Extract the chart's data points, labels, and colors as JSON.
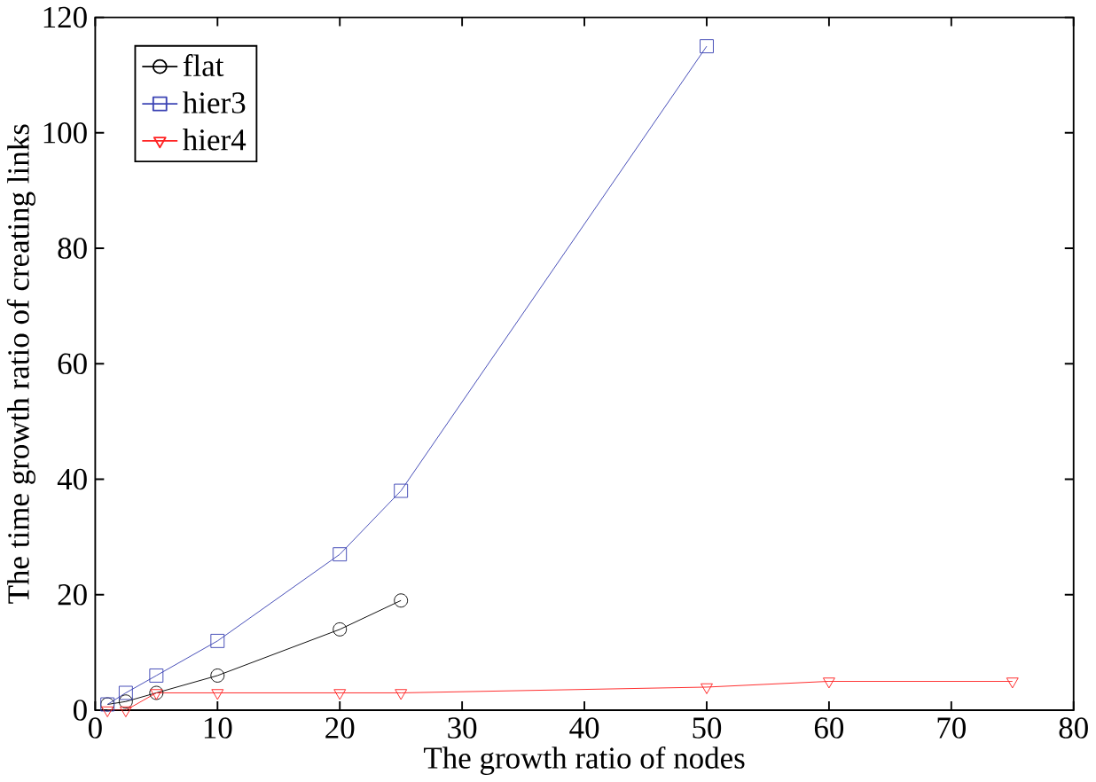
{
  "chart_data": {
    "type": "line",
    "xlabel": "The growth ratio of nodes",
    "ylabel": "The time growth ratio of creating links",
    "xlim": [
      0,
      80
    ],
    "ylim": [
      0,
      120
    ],
    "xticks": [
      0,
      10,
      20,
      30,
      40,
      50,
      60,
      70,
      80
    ],
    "yticks": [
      0,
      20,
      40,
      60,
      80,
      100,
      120
    ],
    "legend": "top left",
    "grid": false,
    "series": [
      {
        "name": "flat",
        "color": "#000000",
        "marker": "circle",
        "x": [
          1,
          2.5,
          5,
          10,
          20,
          25
        ],
        "values": [
          1,
          1.5,
          3,
          6,
          14,
          19
        ]
      },
      {
        "name": "hier3",
        "color": "#3c44b4",
        "marker": "square",
        "x": [
          1,
          2.5,
          5,
          10,
          20,
          25,
          50
        ],
        "values": [
          1,
          3,
          6,
          12,
          27,
          38,
          115
        ]
      },
      {
        "name": "hier4",
        "color": "#ff2020",
        "marker": "triangle",
        "x": [
          1,
          2.5,
          5,
          10,
          20,
          25,
          50,
          60,
          75
        ],
        "values": [
          0,
          0,
          3,
          3,
          3,
          3,
          4,
          5,
          5
        ]
      }
    ]
  }
}
